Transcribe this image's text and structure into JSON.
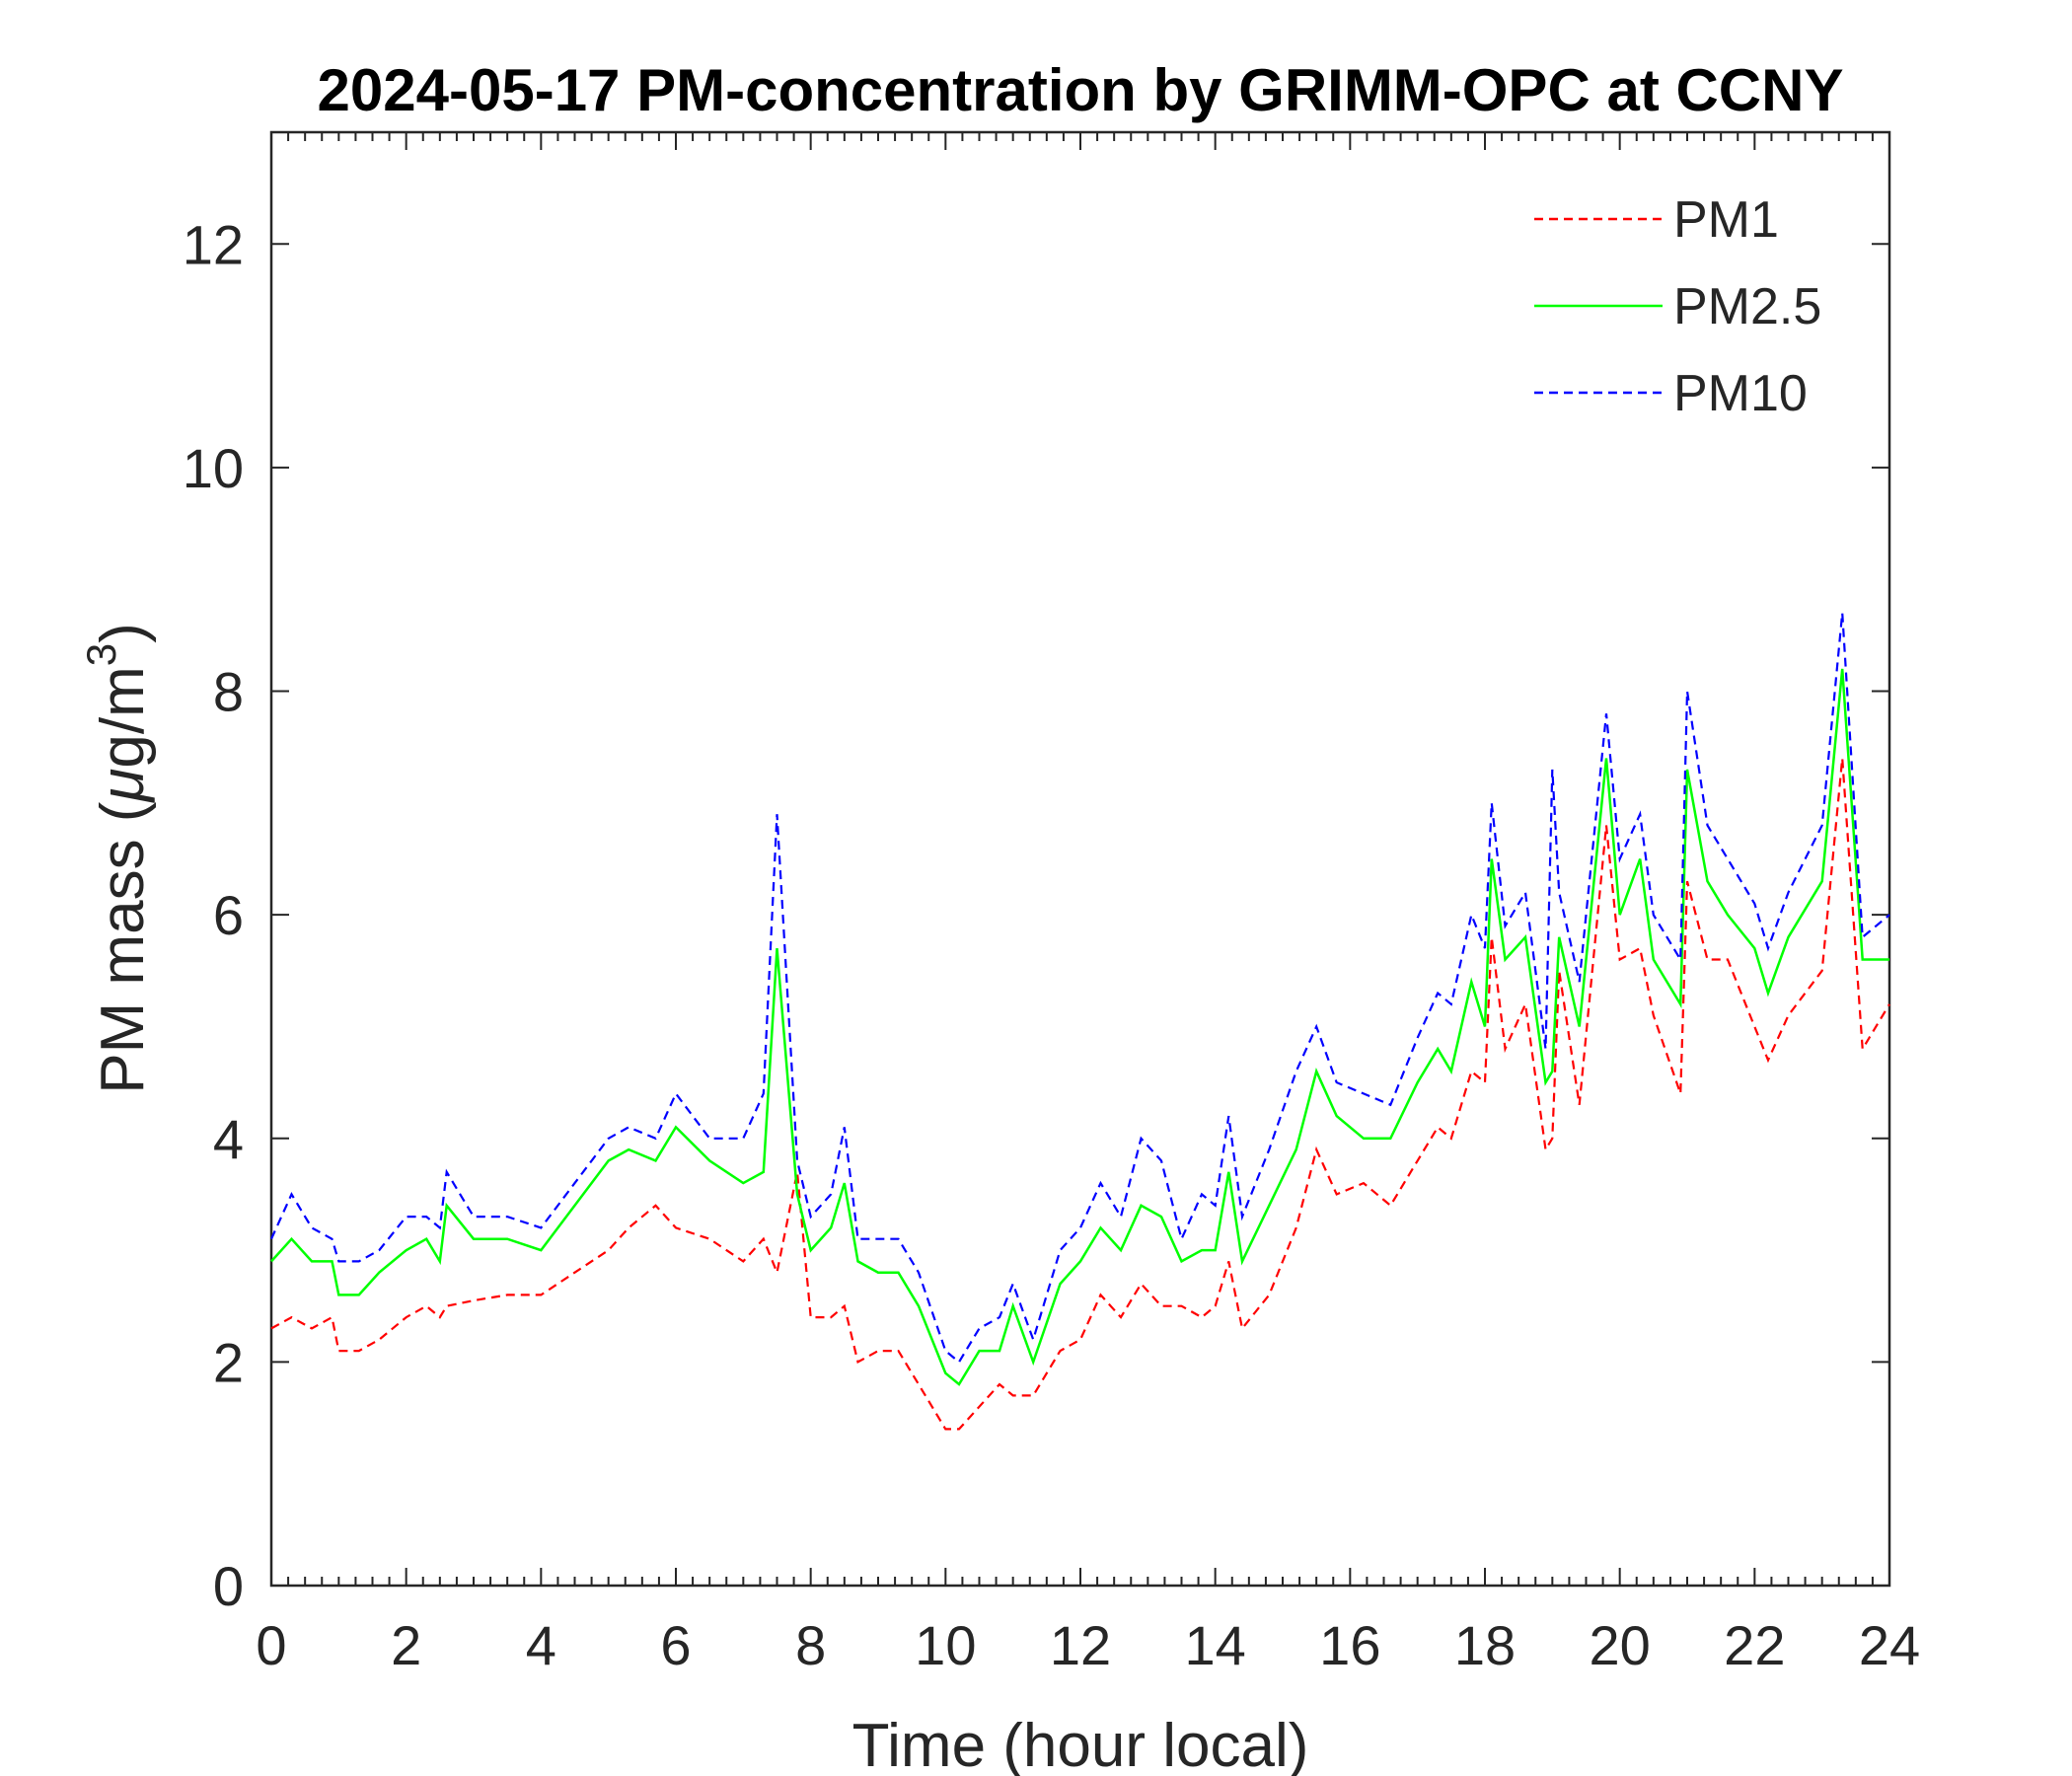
{
  "chart_data": {
    "type": "line",
    "title": "2024-05-17 PM-concentration by GRIMM-OPC at CCNY",
    "xlabel": "Time (hour local)",
    "ylabel": "PM mass (μg/m³)",
    "ylabel_parts": {
      "main": "PM mass (",
      "mu": "μ",
      "unit": "g/m",
      "sup": "3",
      "close": ")"
    },
    "xlim": [
      0,
      24
    ],
    "ylim": [
      0,
      13
    ],
    "xticks": [
      0,
      2,
      4,
      6,
      8,
      10,
      12,
      14,
      16,
      18,
      20,
      22,
      24
    ],
    "yticks": [
      0,
      2,
      4,
      6,
      8,
      10,
      12
    ],
    "grid": false,
    "legend_placement": "top-right",
    "x": [
      0,
      0.3,
      0.6,
      0.9,
      1.0,
      1.3,
      1.6,
      2.0,
      2.3,
      2.5,
      2.6,
      3.0,
      3.5,
      4.0,
      4.5,
      5.0,
      5.3,
      5.7,
      6.0,
      6.5,
      7.0,
      7.3,
      7.5,
      7.8,
      8.0,
      8.3,
      8.5,
      8.7,
      9.0,
      9.3,
      9.6,
      10.0,
      10.2,
      10.5,
      10.8,
      11.0,
      11.3,
      11.7,
      12.0,
      12.3,
      12.6,
      12.9,
      13.2,
      13.5,
      13.8,
      14.0,
      14.2,
      14.4,
      14.8,
      15.2,
      15.5,
      15.8,
      16.2,
      16.6,
      17.0,
      17.3,
      17.5,
      17.8,
      18.0,
      18.1,
      18.3,
      18.6,
      18.9,
      19.0,
      19.1,
      19.4,
      19.8,
      20.0,
      20.3,
      20.5,
      20.9,
      21.0,
      21.3,
      21.6,
      22.0,
      22.2,
      22.5,
      23.0,
      23.3,
      23.6,
      24.0
    ],
    "series": [
      {
        "name": "PM1",
        "color": "#ff0000",
        "style": "dashed",
        "values": [
          2.3,
          2.4,
          2.3,
          2.4,
          2.1,
          2.1,
          2.2,
          2.4,
          2.5,
          2.4,
          2.5,
          2.55,
          2.6,
          2.6,
          2.8,
          3.0,
          3.2,
          3.4,
          3.2,
          3.1,
          2.9,
          3.1,
          2.8,
          3.7,
          2.4,
          2.4,
          2.5,
          2.0,
          2.1,
          2.1,
          1.8,
          1.4,
          1.4,
          1.6,
          1.8,
          1.7,
          1.7,
          2.1,
          2.2,
          2.6,
          2.4,
          2.7,
          2.5,
          2.5,
          2.4,
          2.5,
          2.9,
          2.3,
          2.6,
          3.2,
          3.9,
          3.5,
          3.6,
          3.4,
          3.8,
          4.1,
          4.0,
          4.6,
          4.5,
          5.8,
          4.8,
          5.2,
          3.9,
          4.0,
          5.5,
          4.3,
          6.8,
          5.6,
          5.7,
          5.1,
          4.4,
          6.3,
          5.6,
          5.6,
          5.0,
          4.7,
          5.1,
          5.5,
          7.4,
          4.8,
          5.2
        ]
      },
      {
        "name": "PM2.5",
        "color": "#00ff00",
        "style": "solid",
        "values": [
          2.9,
          3.1,
          2.9,
          2.9,
          2.6,
          2.6,
          2.8,
          3.0,
          3.1,
          2.9,
          3.4,
          3.1,
          3.1,
          3.0,
          3.4,
          3.8,
          3.9,
          3.8,
          4.1,
          3.8,
          3.6,
          3.7,
          5.7,
          3.5,
          3.0,
          3.2,
          3.6,
          2.9,
          2.8,
          2.8,
          2.5,
          1.9,
          1.8,
          2.1,
          2.1,
          2.5,
          2.0,
          2.7,
          2.9,
          3.2,
          3.0,
          3.4,
          3.3,
          2.9,
          3.0,
          3.0,
          3.7,
          2.9,
          3.4,
          3.9,
          4.6,
          4.2,
          4.0,
          4.0,
          4.5,
          4.8,
          4.6,
          5.4,
          5.0,
          6.5,
          5.6,
          5.8,
          4.5,
          4.6,
          5.8,
          5.0,
          7.4,
          6.0,
          6.5,
          5.6,
          5.2,
          7.3,
          6.3,
          6.0,
          5.7,
          5.3,
          5.8,
          6.3,
          8.2,
          5.6,
          5.6
        ]
      },
      {
        "name": "PM10",
        "color": "#0000ff",
        "style": "dashed",
        "values": [
          3.1,
          3.5,
          3.2,
          3.1,
          2.9,
          2.9,
          3.0,
          3.3,
          3.3,
          3.2,
          3.7,
          3.3,
          3.3,
          3.2,
          3.6,
          4.0,
          4.1,
          4.0,
          4.4,
          4.0,
          4.0,
          4.4,
          6.9,
          3.8,
          3.3,
          3.5,
          4.1,
          3.1,
          3.1,
          3.1,
          2.8,
          2.1,
          2.0,
          2.3,
          2.4,
          2.7,
          2.2,
          3.0,
          3.2,
          3.6,
          3.3,
          4.0,
          3.8,
          3.1,
          3.5,
          3.4,
          4.2,
          3.3,
          3.9,
          4.6,
          5.0,
          4.5,
          4.4,
          4.3,
          4.9,
          5.3,
          5.2,
          6.0,
          5.7,
          7.0,
          5.9,
          6.2,
          4.8,
          7.3,
          6.2,
          5.4,
          7.8,
          6.5,
          6.9,
          6.0,
          5.6,
          8.0,
          6.8,
          6.5,
          6.1,
          5.7,
          6.2,
          6.8,
          8.7,
          5.8,
          6.0
        ]
      }
    ]
  }
}
